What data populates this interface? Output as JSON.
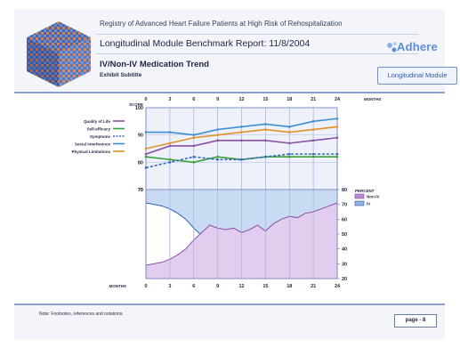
{
  "header": {
    "registry_title": "Registry of Advanced Heart Failure Patients at High Risk of Rehospitalization",
    "report_title": "Longitudinal Module Benchmark Report: 11/8/2004",
    "slide_title": "IV/Non-IV Medication Trend",
    "subtitle": "Exhibit Subtitle"
  },
  "brand": {
    "logo_text": "Adhere",
    "module_button": "Longitudinal Module"
  },
  "footer": {
    "note": "Note: Footnotes, references and notations.",
    "page_label": "page - 8"
  },
  "colors": {
    "quality_of_life": "#8a4fa8",
    "self_efficacy": "#3aa03a",
    "symptoms": "#3568c0",
    "social_interference": "#3b8fd0",
    "physical_limitations": "#e0922c",
    "non_iv": "#b58ad0",
    "iv": "#8fb2e2"
  },
  "chart_data": [
    {
      "type": "line",
      "x_label": "MONTHS",
      "y_label": "SCORE",
      "x": [
        0,
        3,
        6,
        9,
        12,
        15,
        18,
        21,
        24
      ],
      "ylim": [
        70,
        100
      ],
      "y_ticks": [
        70,
        80,
        90,
        100
      ],
      "legend_position": "left",
      "series": [
        {
          "name": "Quality of Life",
          "values": [
            83,
            86,
            86,
            88,
            88,
            88,
            87,
            88,
            89
          ]
        },
        {
          "name": "Self-efficacy",
          "values": [
            82,
            81,
            80,
            82,
            81,
            82,
            82,
            82,
            82
          ]
        },
        {
          "name": "Symptoms",
          "values": [
            78,
            80,
            82,
            81,
            81,
            82,
            83,
            83,
            83
          ]
        },
        {
          "name": "Social Interference",
          "values": [
            91,
            91,
            90,
            92,
            93,
            94,
            93,
            95,
            96
          ]
        },
        {
          "name": "Physical Limitations",
          "values": [
            85,
            87,
            89,
            90,
            91,
            92,
            91,
            92,
            93
          ]
        }
      ]
    },
    {
      "type": "area",
      "x_label": "MONTHS",
      "y_label": "PERCENT",
      "x": [
        0,
        1,
        2,
        3,
        4,
        5,
        6,
        7,
        8,
        9,
        10,
        11,
        12,
        13,
        14,
        15,
        16,
        17,
        18,
        19,
        20,
        21,
        22,
        23,
        24
      ],
      "x_ticks": [
        0,
        3,
        6,
        9,
        12,
        15,
        18,
        21,
        24
      ],
      "ylim": [
        20,
        80
      ],
      "y_ticks": [
        20,
        30,
        40,
        50,
        60,
        70,
        80
      ],
      "legend_position": "right",
      "series": [
        {
          "name": "Non-IV",
          "values": [
            29,
            30,
            31,
            33,
            36,
            40,
            46,
            51,
            56,
            54,
            53,
            54,
            51,
            53,
            56,
            52,
            57,
            60,
            62,
            61,
            64,
            65,
            67,
            69,
            71
          ]
        },
        {
          "name": "IV",
          "values": [
            71,
            70,
            69,
            67,
            64,
            60,
            54,
            49,
            44,
            46,
            47,
            46,
            49,
            47,
            44,
            48,
            43,
            40,
            38,
            39,
            36,
            35,
            33,
            31,
            29
          ]
        }
      ]
    }
  ]
}
